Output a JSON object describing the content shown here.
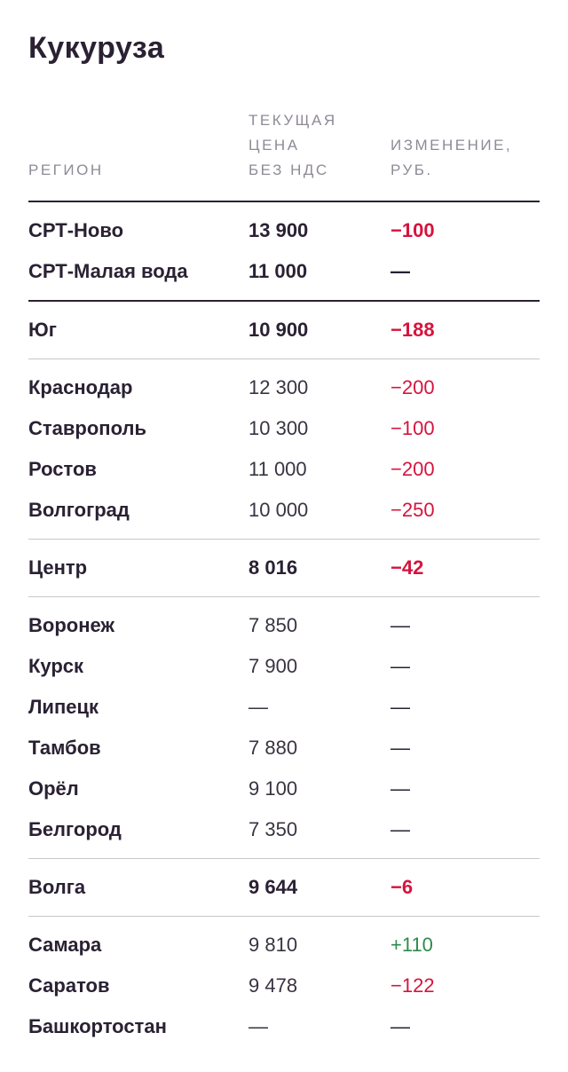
{
  "title": "Кукуруза",
  "header": {
    "region": "РЕГИОН",
    "price": "ТЕКУЩАЯ\nЦЕНА\nБЕЗ НДС",
    "change": "ИЗМЕНЕНИЕ,\nРУБ."
  },
  "colors": {
    "text": "#2a2133",
    "muted": "#8f8a96",
    "negative": "#d6133d",
    "positive": "#2e8b4a",
    "divider": "#c8c6cc"
  },
  "groups": [
    {
      "kind": "top",
      "rows": [
        {
          "region": "СРТ-Ново",
          "price": "13 900",
          "change": "−100",
          "tone": "neg",
          "bold": true
        },
        {
          "region": "СРТ-Малая вода",
          "price": "11 000",
          "change": "—",
          "tone": "none",
          "bold": true
        }
      ]
    },
    {
      "kind": "agg",
      "rows": [
        {
          "region": "Юг",
          "price": "10 900",
          "change": "−188",
          "tone": "neg",
          "bold": true
        }
      ]
    },
    {
      "kind": "list",
      "rows": [
        {
          "region": "Краснодар",
          "price": "12 300",
          "change": "−200",
          "tone": "neg",
          "bold": false
        },
        {
          "region": "Ставрополь",
          "price": "10 300",
          "change": "−100",
          "tone": "neg",
          "bold": false
        },
        {
          "region": "Ростов",
          "price": "11 000",
          "change": "−200",
          "tone": "neg",
          "bold": false
        },
        {
          "region": "Волгоград",
          "price": "10 000",
          "change": "−250",
          "tone": "neg",
          "bold": false
        }
      ]
    },
    {
      "kind": "agg",
      "rows": [
        {
          "region": "Центр",
          "price": "8 016",
          "change": "−42",
          "tone": "neg",
          "bold": true
        }
      ]
    },
    {
      "kind": "list",
      "rows": [
        {
          "region": "Воронеж",
          "price": "7 850",
          "change": "—",
          "tone": "none",
          "bold": false
        },
        {
          "region": "Курск",
          "price": "7 900",
          "change": "—",
          "tone": "none",
          "bold": false
        },
        {
          "region": "Липецк",
          "price": "—",
          "change": "—",
          "tone": "none",
          "bold": false
        },
        {
          "region": "Тамбов",
          "price": "7 880",
          "change": "—",
          "tone": "none",
          "bold": false
        },
        {
          "region": "Орёл",
          "price": "9 100",
          "change": "—",
          "tone": "none",
          "bold": false
        },
        {
          "region": "Белгород",
          "price": "7 350",
          "change": "—",
          "tone": "none",
          "bold": false
        }
      ]
    },
    {
      "kind": "agg",
      "rows": [
        {
          "region": "Волга",
          "price": "9 644",
          "change": "−6",
          "tone": "neg",
          "bold": true
        }
      ]
    },
    {
      "kind": "list",
      "rows": [
        {
          "region": "Самара",
          "price": "9 810",
          "change": "+110",
          "tone": "pos",
          "bold": false
        },
        {
          "region": "Саратов",
          "price": "9 478",
          "change": "−122",
          "tone": "neg",
          "bold": false
        },
        {
          "region": "Башкортостан",
          "price": "—",
          "change": "—",
          "tone": "none",
          "bold": false
        }
      ]
    }
  ]
}
